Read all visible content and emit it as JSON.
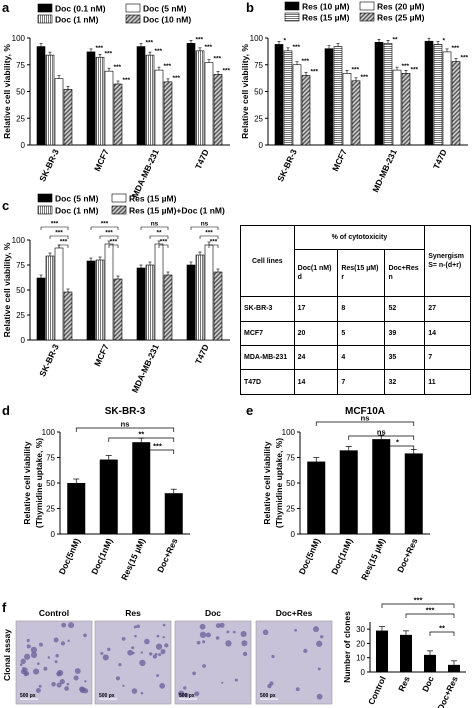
{
  "panel_labels": {
    "a": "a",
    "b": "b",
    "c": "c",
    "d": "d",
    "e": "e",
    "f": "f"
  },
  "fills": {
    "s1": "#000000",
    "s2": "#ffffff",
    "s3": "#b8b8b8",
    "s4": "#8f8f8f",
    "bar": "#000000"
  },
  "chart_data": [
    {
      "panel": "a",
      "type": "bar",
      "ylabel": "Relative cell viability, %",
      "ylim": [
        0,
        100
      ],
      "yticks": [
        0,
        25,
        50,
        75,
        100
      ],
      "categories": [
        "SK-BR-3",
        "MCF7",
        "MDA-MB-231",
        "T47D"
      ],
      "series": [
        {
          "name": "Doc (0.1 nM)",
          "values": [
            92,
            87,
            92,
            95
          ]
        },
        {
          "name": "Doc (1 nM)",
          "values": [
            84,
            82,
            84,
            88
          ]
        },
        {
          "name": "Doc (5 nM)",
          "values": [
            62,
            69,
            70,
            77
          ]
        },
        {
          "name": "Doc (10 nM)",
          "values": [
            52,
            57,
            59,
            66
          ]
        }
      ],
      "significance": [
        [
          "",
          "***",
          "***",
          "***"
        ],
        [
          "",
          "***",
          "***",
          "***"
        ],
        [
          "",
          "***",
          "***",
          "***"
        ],
        [
          "",
          "***",
          "***",
          "***"
        ]
      ]
    },
    {
      "panel": "b",
      "type": "bar",
      "ylabel": "Relative cell viability, %",
      "ylim": [
        0,
        100
      ],
      "yticks": [
        0,
        25,
        50,
        75,
        100
      ],
      "categories": [
        "SK-BR-3",
        "MCF7",
        "MD-MB-231",
        "T47D"
      ],
      "series": [
        {
          "name": "Res (10 µM)",
          "values": [
            94,
            90,
            96,
            97
          ]
        },
        {
          "name": "Res (15 µM)",
          "values": [
            88,
            92,
            95,
            94
          ]
        },
        {
          "name": "Res (20 µM)",
          "values": [
            75,
            67,
            70,
            87
          ]
        },
        {
          "name": "Res (25 µM)",
          "values": [
            65,
            60,
            67,
            78
          ]
        }
      ],
      "significance": [
        [
          "*",
          "",
          "",
          ""
        ],
        [
          "***",
          "",
          "**",
          "*"
        ],
        [
          "***",
          "***",
          "***",
          "***"
        ],
        [
          "***",
          "***",
          "***",
          "***"
        ]
      ]
    },
    {
      "panel": "c",
      "type": "bar",
      "ylabel": "Relative cell viability, %",
      "ylim": [
        0,
        100
      ],
      "yticks": [
        0,
        25,
        50,
        75,
        100
      ],
      "categories": [
        "SK-BR-3",
        "MCF7",
        "MDA-MB-231",
        "T47D"
      ],
      "series": [
        {
          "name": "Doc (5 nM)",
          "values": [
            62,
            79,
            72,
            75
          ]
        },
        {
          "name": "Doc (1 nM)",
          "values": [
            84,
            80,
            75,
            85
          ]
        },
        {
          "name": "Res (15 µM)",
          "values": [
            92,
            96,
            96,
            95
          ]
        },
        {
          "name": "Res (15 µM)+Doc (1 nM)",
          "values": [
            48,
            61,
            65,
            68
          ]
        }
      ],
      "brackets": [
        [
          "***",
          "***",
          "***"
        ],
        [
          "***",
          "***",
          "***"
        ],
        [
          "ns",
          "**",
          "***"
        ],
        [
          "ns",
          "***",
          "***"
        ]
      ]
    },
    {
      "panel": "d",
      "type": "bar",
      "title": "SK-BR-3",
      "ylabel": "Relative cell viability",
      "ylabel2": "(Thymidine uptake, %)",
      "ylim": [
        0,
        100
      ],
      "yticks": [
        0,
        25,
        50,
        75,
        100
      ],
      "categories": [
        "Doc(5nM)",
        "Doc(1nM)",
        "Res(15 µM)",
        "Doc+Res"
      ],
      "values": [
        50,
        73,
        90,
        40
      ],
      "brackets": [
        "ns",
        "**",
        "***"
      ]
    },
    {
      "panel": "e",
      "type": "bar",
      "title": "MCF10A",
      "ylabel": "Relative cell viability",
      "ylabel2": "(Thymidine uptake, %)",
      "ylim": [
        0,
        100
      ],
      "yticks": [
        0,
        25,
        50,
        75,
        100
      ],
      "categories": [
        "Doc(5nM)",
        "Doc(1nM)",
        "Res(15 µM)",
        "Doc+Res"
      ],
      "values": [
        71,
        82,
        93,
        79
      ],
      "brackets": [
        "ns",
        "ns",
        "*"
      ]
    },
    {
      "panel": "f",
      "type": "bar",
      "ylabel": "Number of clones",
      "ylim": [
        0,
        35
      ],
      "yticks": [
        0,
        10,
        20,
        30
      ],
      "categories": [
        "Control",
        "Res",
        "Doc",
        "Doc+Res"
      ],
      "values": [
        29,
        26,
        12,
        5
      ],
      "brackets": [
        "***",
        "***",
        "**"
      ]
    }
  ],
  "table": {
    "header_group": "% of cytotoxicity",
    "col_cell_lines": "Cell lines",
    "cols": [
      [
        "Doc(1 nM)",
        "d"
      ],
      [
        "Res(15 µM)",
        "r"
      ],
      [
        "Doc+Res",
        "n"
      ],
      [
        "Synergism",
        "S= n-(d+r)"
      ]
    ],
    "rows": [
      {
        "line": "SK-BR-3",
        "vals": [
          "17",
          "8",
          "52",
          "27"
        ]
      },
      {
        "line": "MCF7",
        "vals": [
          "20",
          "5",
          "39",
          "14"
        ]
      },
      {
        "line": "MDA-MB-231",
        "vals": [
          "24",
          "4",
          "35",
          "7"
        ]
      },
      {
        "line": "T47D",
        "vals": [
          "14",
          "7",
          "32",
          "11"
        ]
      }
    ]
  },
  "clonal": {
    "side_label": "Clonal assay",
    "panels": [
      "Control",
      "Res",
      "Doc",
      "Doc+Res"
    ],
    "scale": "500 px",
    "fill_color": "#c7c2d8",
    "colony_color": "#6a5d9a"
  }
}
